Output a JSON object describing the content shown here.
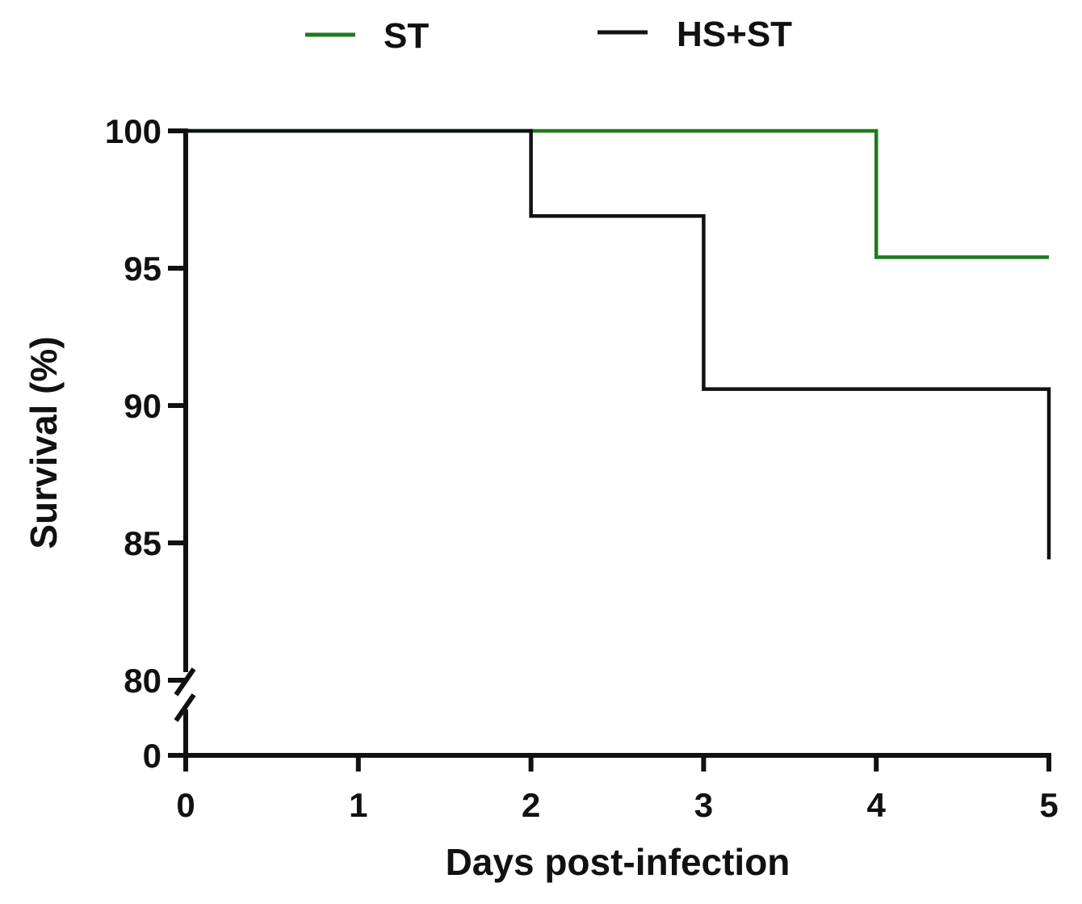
{
  "chart_data": {
    "type": "line",
    "step": true,
    "x_ticks": [
      0,
      1,
      2,
      3,
      4,
      5
    ],
    "y_ticks": [
      100,
      95,
      90,
      85,
      80,
      0
    ],
    "y_axis_break": {
      "low_segment": [
        0,
        0
      ],
      "high_segment": [
        80,
        100
      ]
    },
    "xlim": [
      0,
      5
    ],
    "xlabel": "Days post-infection",
    "ylabel": "Survival (%)",
    "legend_position": "top-center",
    "grid": false,
    "series": [
      {
        "name": "ST",
        "color": "#1f7a1f",
        "points": [
          [
            0,
            100
          ],
          [
            4,
            100
          ],
          [
            4,
            95.4
          ],
          [
            5,
            95.4
          ]
        ]
      },
      {
        "name": "HS+ST",
        "color": "#111111",
        "points": [
          [
            0,
            100
          ],
          [
            2,
            100
          ],
          [
            2,
            96.9
          ],
          [
            3,
            96.9
          ],
          [
            3,
            90.6
          ],
          [
            5,
            90.6
          ],
          [
            5,
            84.4
          ]
        ]
      }
    ]
  }
}
